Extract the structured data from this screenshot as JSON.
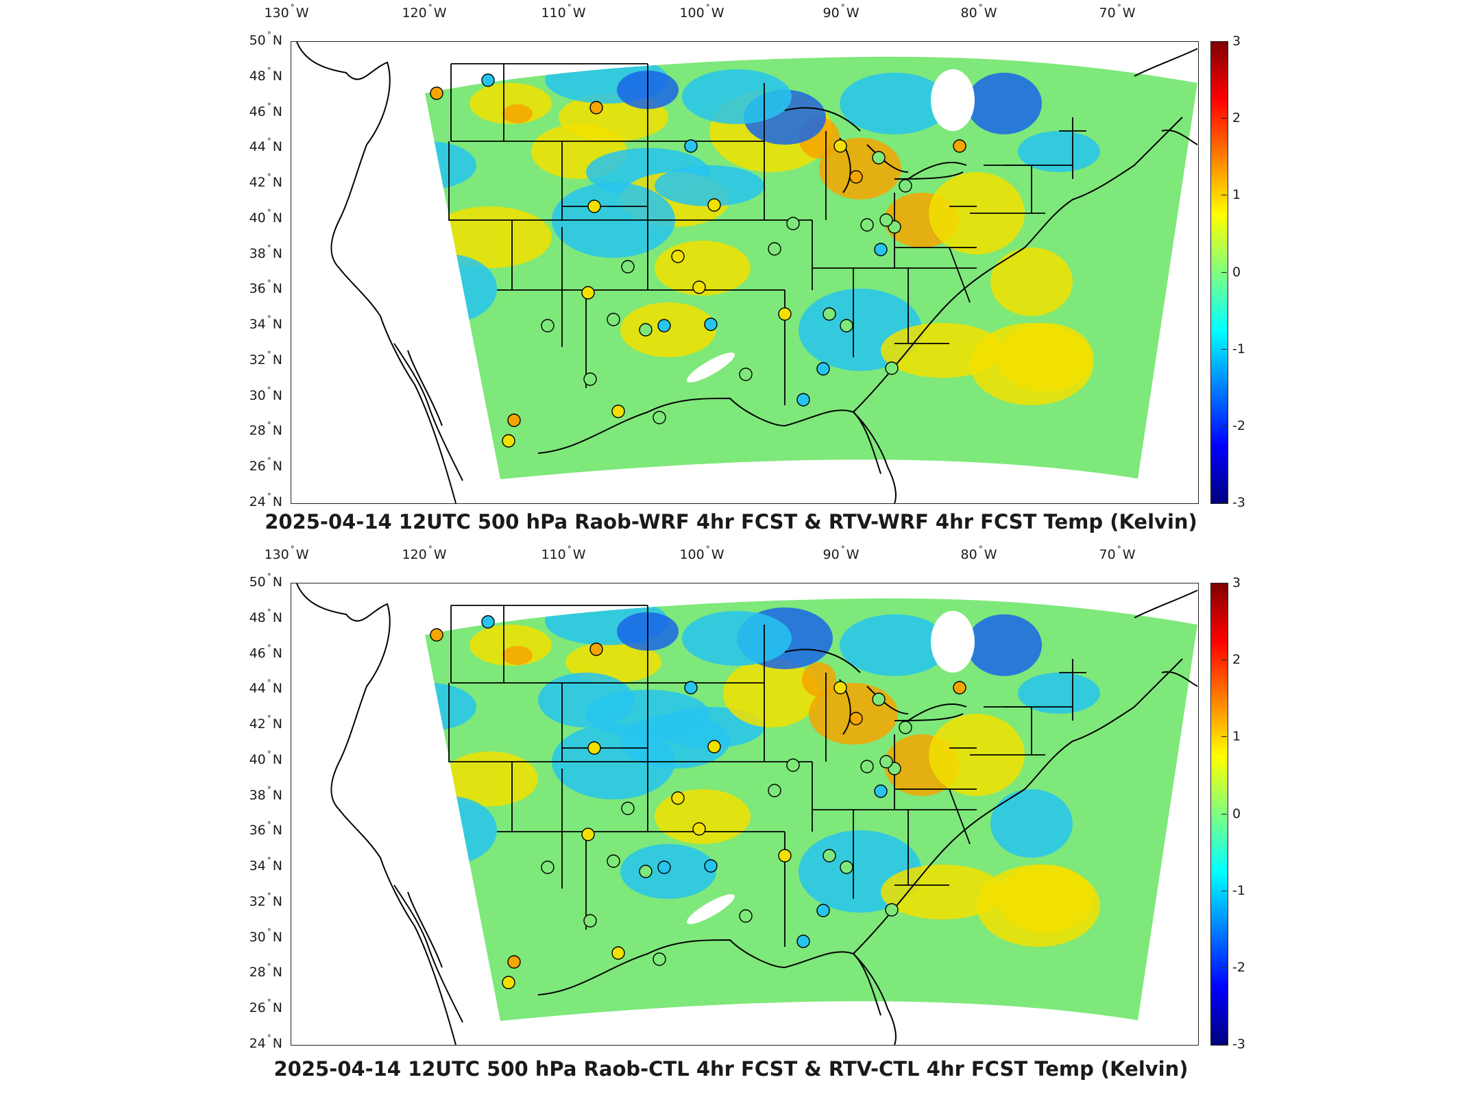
{
  "lon_ticks": [
    "130",
    "120",
    "110",
    "100",
    "90",
    "80",
    "70"
  ],
  "lon_hemisphere": "W",
  "lat_ticks": [
    "50",
    "48",
    "46",
    "44",
    "42",
    "40",
    "38",
    "36",
    "34",
    "32",
    "30",
    "28",
    "26",
    "24"
  ],
  "lat_hemisphere": "N",
  "degree_symbol": "°",
  "colorbar": {
    "ticks": [
      "3",
      "2",
      "1",
      "0",
      "-1",
      "-2",
      "-3"
    ],
    "range": [
      -3,
      3
    ],
    "colormap": [
      "#00007f",
      "#0000ff",
      "#007fff",
      "#00ffff",
      "#7fff7f",
      "#ffff00",
      "#ff7f00",
      "#ff0000",
      "#7f0000"
    ]
  },
  "panels": [
    {
      "title": "2025-04-14 12UTC 500 hPa Raob-WRF 4hr FCST & RTV-WRF 4hr FCST Temp (Kelvin)"
    },
    {
      "title": "2025-04-14 12UTC 500 hPa Raob-CTL 4hr FCST & RTV-CTL 4hr FCST Temp (Kelvin)"
    }
  ],
  "colors": {
    "field_base": "#7ee87a",
    "warm_patch": "#f2e000",
    "hot_patch": "#f5a500",
    "cool_patch": "#27c4ee",
    "cold_patch": "#1a66e6",
    "border_line": "#000000"
  },
  "map_extent": {
    "lon": [
      -130,
      -65
    ],
    "lat": [
      24,
      50
    ]
  }
}
